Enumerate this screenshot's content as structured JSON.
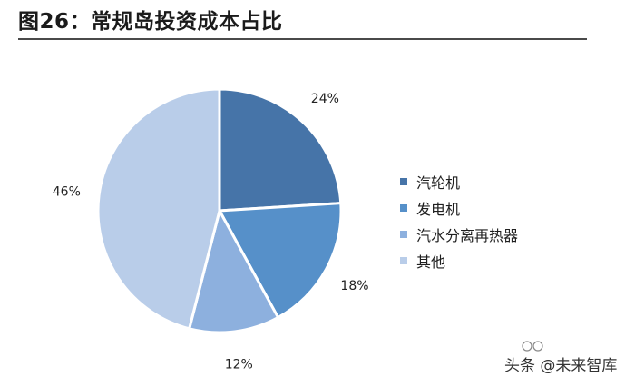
{
  "title": "图26：常规岛投资成本占比",
  "watermark": "头条 @未来智库",
  "chart_data": {
    "type": "pie",
    "start_angle_deg": 0,
    "direction": "clockwise",
    "series": [
      {
        "name": "汽轮机",
        "value": 24,
        "label": "24%",
        "color": "#4674a8"
      },
      {
        "name": "发电机",
        "value": 18,
        "label": "18%",
        "color": "#5690c9"
      },
      {
        "name": "汽水分离再热器",
        "value": 12,
        "label": "12%",
        "color": "#8db0de"
      },
      {
        "name": "其他",
        "value": 46,
        "label": "46%",
        "color": "#b9cde9"
      }
    ],
    "legend_position": "right"
  }
}
